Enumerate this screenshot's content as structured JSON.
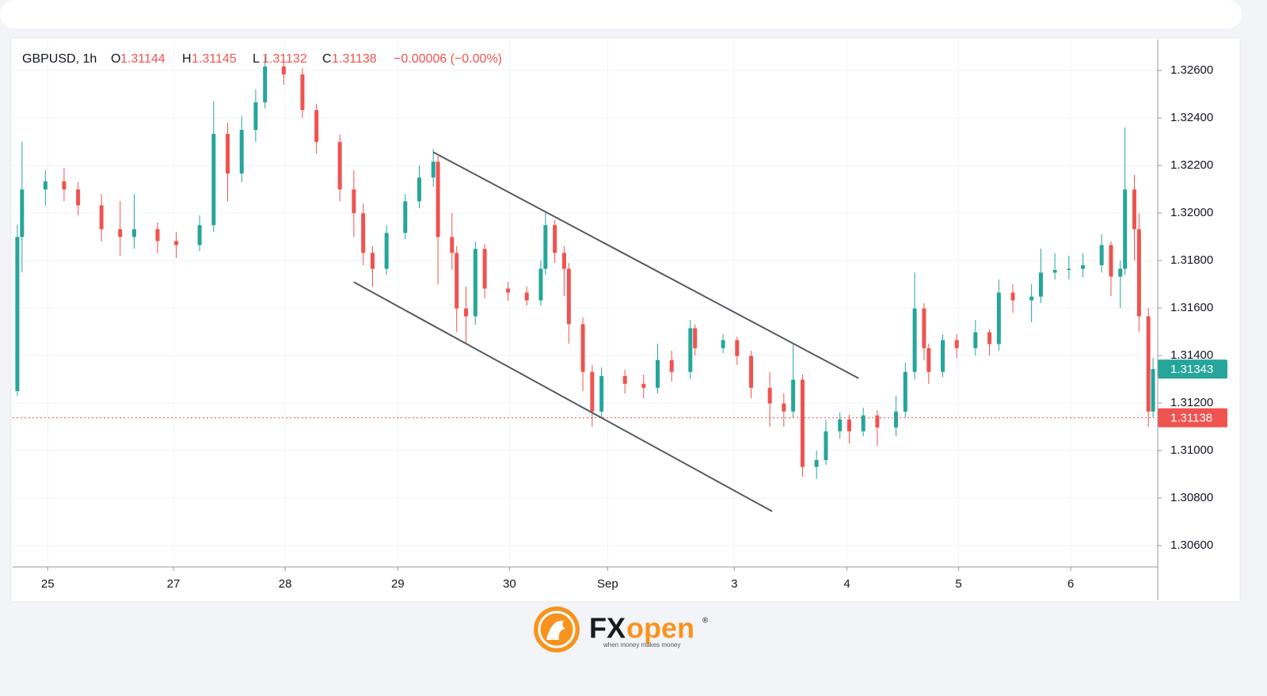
{
  "chart_data": {
    "type": "candlestick",
    "symbol": "GBPUSD, 1h",
    "legend": [
      {
        "key": "O",
        "value": 1.31144
      },
      {
        "key": "H",
        "value": 1.31145
      },
      {
        "key": "L",
        "value": 1.31132
      },
      {
        "key": "C",
        "value": 1.31138
      }
    ],
    "change": "−0.00006 (−0.00%)",
    "up_color": "#26a69a",
    "down_color": "#ef5350",
    "x": [
      1,
      2,
      7,
      11,
      14,
      19,
      23,
      26,
      31,
      35,
      40,
      43,
      46,
      49,
      52,
      54,
      58,
      62,
      65,
      70,
      73,
      75,
      77,
      80,
      84,
      87,
      90,
      91,
      94,
      95,
      97,
      99,
      101,
      106,
      110,
      113,
      114,
      116,
      118,
      119,
      122,
      124,
      126,
      131,
      135,
      138,
      141,
      145,
      146,
      152,
      155,
      158,
      162,
      165,
      167,
      169,
      172,
      174,
      177,
      179,
      182,
      185,
      189,
      191,
      193,
      195,
      196,
      199,
      202,
      206,
      209,
      211,
      214,
      218,
      220,
      223,
      226,
      229,
      233,
      235,
      237,
      238,
      240,
      241,
      243,
      244
    ],
    "open": [
      1.3125,
      1.31899,
      1.32099,
      1.32133,
      1.32099,
      1.32032,
      1.31932,
      1.31899,
      1.31932,
      1.31882,
      1.31865,
      1.31949,
      1.32333,
      1.32166,
      1.3235,
      1.32466,
      1.32617,
      1.32583,
      1.32433,
      1.32299,
      1.32099,
      1.31999,
      1.31832,
      1.31765,
      1.31916,
      1.32049,
      1.32149,
      1.32216,
      1.31899,
      1.31832,
      1.31598,
      1.31565,
      1.31849,
      1.31682,
      1.31665,
      1.31632,
      1.31765,
      1.31949,
      1.31832,
      1.31765,
      1.31532,
      1.31331,
      1.31164,
      1.31314,
      1.31281,
      1.31264,
      1.31381,
      1.31331,
      1.31515,
      1.31431,
      1.31465,
      1.31398,
      1.31264,
      1.31198,
      1.31164,
      1.31298,
      1.30931,
      1.3096,
      1.31081,
      1.31131,
      1.31081,
      1.31148,
      1.31097,
      1.31164,
      1.31331,
      1.31598,
      1.31431,
      1.31331,
      1.31465,
      1.31431,
      1.31498,
      1.31448,
      1.31665,
      1.31632,
      1.31648,
      1.31749,
      1.3176,
      1.31765,
      1.3178,
      1.31865,
      1.31732,
      1.31765,
      1.32099,
      1.31932,
      1.31565,
      1.31164
    ],
    "high": [
      1.3195,
      1.323,
      1.3218,
      1.3219,
      1.3213,
      1.3208,
      1.3205,
      1.3208,
      1.3196,
      1.3192,
      1.3199,
      1.3247,
      1.3238,
      1.3241,
      1.3252,
      1.3266,
      1.3264,
      1.3261,
      1.3246,
      1.3233,
      1.3218,
      1.3204,
      1.3186,
      1.3195,
      1.3208,
      1.322,
      1.3227,
      1.3224,
      1.32,
      1.3186,
      1.3169,
      1.3188,
      1.3187,
      1.3171,
      1.3169,
      1.318,
      1.32,
      1.3197,
      1.3186,
      1.3179,
      1.3156,
      1.3136,
      1.3135,
      1.3134,
      1.3132,
      1.3145,
      1.3142,
      1.3155,
      1.3153,
      1.3149,
      1.3148,
      1.3142,
      1.3133,
      1.3124,
      1.3145,
      1.3132,
      1.31,
      1.3113,
      1.3116,
      1.3115,
      1.3118,
      1.3117,
      1.3123,
      1.3137,
      1.3175,
      1.3162,
      1.3145,
      1.3149,
      1.3149,
      1.3155,
      1.3151,
      1.3172,
      1.317,
      1.317,
      1.3185,
      1.3183,
      1.3182,
      1.3183,
      1.3191,
      1.3188,
      1.318,
      1.3236,
      1.3216,
      1.32,
      1.316,
      1.3139
    ],
    "low": [
      1.3123,
      1.3175,
      1.3203,
      1.3205,
      1.3199,
      1.3188,
      1.3182,
      1.3185,
      1.3183,
      1.3181,
      1.3184,
      1.3192,
      1.3205,
      1.3213,
      1.323,
      1.3244,
      1.3254,
      1.324,
      1.3225,
      1.3205,
      1.319,
      1.3178,
      1.3169,
      1.3174,
      1.3189,
      1.3202,
      1.3211,
      1.317,
      1.3176,
      1.315,
      1.3145,
      1.3153,
      1.3164,
      1.3163,
      1.3161,
      1.3161,
      1.3174,
      1.3179,
      1.3165,
      1.3145,
      1.3125,
      1.311,
      1.3114,
      1.3124,
      1.3122,
      1.3124,
      1.3129,
      1.313,
      1.314,
      1.3141,
      1.3136,
      1.3122,
      1.311,
      1.311,
      1.3114,
      1.3089,
      1.3088,
      1.3094,
      1.3105,
      1.3103,
      1.3106,
      1.3102,
      1.3106,
      1.3114,
      1.313,
      1.3138,
      1.3128,
      1.3131,
      1.3139,
      1.314,
      1.314,
      1.3142,
      1.3158,
      1.3154,
      1.3162,
      1.3172,
      1.3172,
      1.3173,
      1.3175,
      1.3165,
      1.316,
      1.3174,
      1.318,
      1.315,
      1.311,
      1.3114
    ],
    "close": [
      1.31899,
      1.32099,
      1.32133,
      1.32099,
      1.32032,
      1.31932,
      1.31899,
      1.31932,
      1.31882,
      1.31865,
      1.31949,
      1.32333,
      1.32166,
      1.3235,
      1.32466,
      1.32617,
      1.32583,
      1.32433,
      1.32299,
      1.32099,
      1.31999,
      1.31832,
      1.31765,
      1.31916,
      1.32049,
      1.32149,
      1.32216,
      1.31899,
      1.31832,
      1.31598,
      1.31565,
      1.31849,
      1.31682,
      1.31665,
      1.31632,
      1.31765,
      1.31949,
      1.31832,
      1.31765,
      1.31532,
      1.31331,
      1.31164,
      1.31314,
      1.31281,
      1.31264,
      1.31381,
      1.31331,
      1.31515,
      1.31431,
      1.31465,
      1.31398,
      1.31264,
      1.31198,
      1.31164,
      1.31298,
      1.30931,
      1.3096,
      1.31081,
      1.31131,
      1.31081,
      1.31148,
      1.31097,
      1.31164,
      1.31331,
      1.31598,
      1.31431,
      1.31331,
      1.31465,
      1.31431,
      1.31498,
      1.31448,
      1.31665,
      1.31632,
      1.31648,
      1.31749,
      1.3176,
      1.31765,
      1.3178,
      1.31865,
      1.31732,
      1.31765,
      1.32099,
      1.31932,
      1.31565,
      1.31164,
      1.31343
    ],
    "xlim": [
      0,
      245
    ],
    "xticks": [
      {
        "value": 7.5,
        "label": "25"
      },
      {
        "value": 34.4,
        "label": "27"
      },
      {
        "value": 58.3,
        "label": "28"
      },
      {
        "value": 82.4,
        "label": "29"
      },
      {
        "value": 106.3,
        "label": "30"
      },
      {
        "value": 127.3,
        "label": "Sep"
      },
      {
        "value": 154.4,
        "label": "3"
      },
      {
        "value": 178.5,
        "label": "4"
      },
      {
        "value": 202.4,
        "label": "5"
      },
      {
        "value": 226.4,
        "label": "6"
      }
    ],
    "ylim": [
      1.3051,
      1.3273
    ],
    "yticks": [
      {
        "value": 1.306,
        "label": "1.30600"
      },
      {
        "value": 1.308,
        "label": "1.30800"
      },
      {
        "value": 1.31,
        "label": "1.31000"
      },
      {
        "value": 1.312,
        "label": "1.31200"
      },
      {
        "value": 1.314,
        "label": "1.31400"
      },
      {
        "value": 1.316,
        "label": "1.31600"
      },
      {
        "value": 1.318,
        "label": "1.31800"
      },
      {
        "value": 1.32,
        "label": "1.32000"
      },
      {
        "value": 1.322,
        "label": "1.32200"
      },
      {
        "value": 1.324,
        "label": "1.32400"
      },
      {
        "value": 1.326,
        "label": "1.32600"
      }
    ],
    "grid": true,
    "trendlines": [
      {
        "x": [
          90,
          181
        ],
        "y": [
          1.32256,
          1.31304
        ]
      },
      {
        "x": [
          73,
          162.5
        ],
        "y": [
          1.31709,
          1.30744
        ]
      }
    ],
    "last_price": 1.31343,
    "price_line": 1.31138
  },
  "logo": {
    "brand_dark": "FX",
    "brand_accent": "open",
    "registered": "®",
    "tagline": "when money makes money"
  }
}
